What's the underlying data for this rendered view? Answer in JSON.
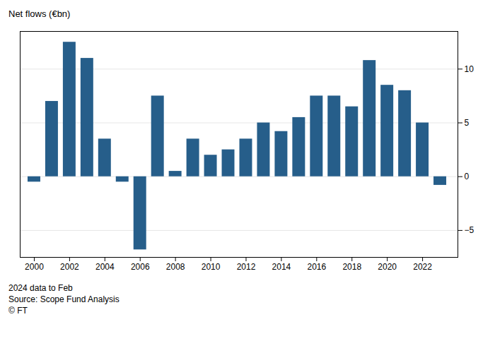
{
  "chart_data": {
    "type": "bar",
    "ylabel": "Net flows (€bn)",
    "x": [
      2000,
      2001,
      2002,
      2003,
      2004,
      2005,
      2006,
      2007,
      2008,
      2009,
      2010,
      2011,
      2012,
      2013,
      2014,
      2015,
      2016,
      2017,
      2018,
      2019,
      2020,
      2021,
      2022,
      2023
    ],
    "values": [
      -0.5,
      7.0,
      12.5,
      11.0,
      3.5,
      -0.5,
      -6.8,
      7.5,
      0.5,
      3.5,
      2.0,
      2.5,
      3.5,
      5.0,
      4.2,
      5.5,
      7.5,
      7.5,
      6.5,
      10.8,
      8.5,
      8.0,
      5.0,
      -0.8
    ],
    "color": "#265e8a",
    "xlim": [
      1999.2,
      2024.0
    ],
    "xticks": [
      2000,
      2002,
      2004,
      2006,
      2008,
      2010,
      2012,
      2014,
      2016,
      2018,
      2020,
      2022
    ],
    "ylim": [
      -7.5,
      13.5
    ],
    "yticks": [
      -5,
      0,
      5,
      10
    ],
    "grid": true,
    "annotations": [
      "2024 data to Feb",
      "Source: Scope Fund Analysis",
      "© FT"
    ]
  }
}
